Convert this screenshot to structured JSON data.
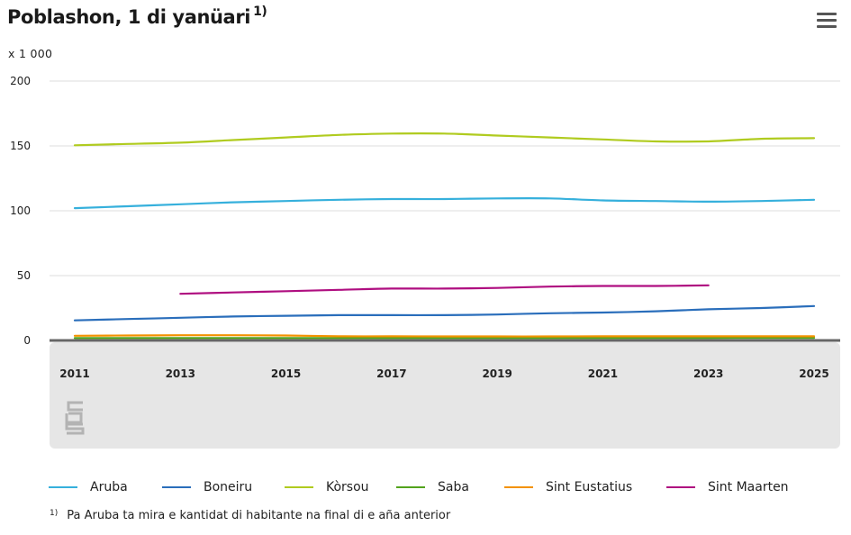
{
  "header": {
    "title": "Poblashon, 1 di yanüari",
    "title_note": "1)",
    "unit": "x 1 000",
    "menu_icon": "hamburger-menu-icon"
  },
  "chart_data": {
    "type": "line",
    "title": "Poblashon, 1 di yanüari",
    "ylabel": "x 1 000",
    "ylim": [
      0,
      200
    ],
    "yticks": [
      0,
      50,
      100,
      150,
      200
    ],
    "xticks": [
      "2011",
      "2013",
      "2015",
      "2017",
      "2019",
      "2021",
      "2023",
      "2025"
    ],
    "x": [
      2011,
      2012,
      2013,
      2014,
      2015,
      2016,
      2017,
      2018,
      2019,
      2020,
      2021,
      2022,
      2023,
      2024,
      2025
    ],
    "grid": true,
    "legend_position": "bottom",
    "series": [
      {
        "name": "Aruba",
        "color": "#36b0dc",
        "values": [
          102,
          103.5,
          105,
          106.5,
          107.5,
          108.5,
          109,
          109,
          109.5,
          109.5,
          108,
          107.5,
          107,
          107.5,
          108.5
        ]
      },
      {
        "name": "Boneiru",
        "color": "#2a6ebb",
        "values": [
          15.5,
          16.5,
          17.5,
          18.5,
          19,
          19.5,
          19.5,
          19.5,
          20,
          21,
          21.5,
          22.5,
          24,
          25,
          26.5
        ]
      },
      {
        "name": "Kòrsou",
        "color": "#b0cb1f",
        "values": [
          150.5,
          151.5,
          152.5,
          154.5,
          156.5,
          158.5,
          159.5,
          159.5,
          158,
          156.5,
          155,
          153.5,
          153.5,
          155.5,
          156
        ]
      },
      {
        "name": "Saba",
        "color": "#53a31d",
        "values": [
          1.9,
          1.9,
          1.9,
          1.9,
          1.9,
          1.9,
          1.9,
          1.9,
          1.9,
          1.9,
          1.9,
          1.9,
          1.9,
          2,
          2
        ]
      },
      {
        "name": "Sint Eustatius",
        "color": "#f39200",
        "values": [
          3.6,
          3.8,
          4,
          4,
          3.8,
          3.2,
          3.2,
          3.1,
          3.1,
          3.1,
          3.2,
          3.2,
          3.2,
          3.2,
          3.2
        ]
      },
      {
        "name": "Sint Maarten",
        "color": "#af0e80",
        "values": [
          null,
          null,
          36,
          37,
          38,
          39,
          40,
          40,
          40.5,
          41.5,
          42,
          42,
          42.5,
          null,
          null
        ]
      }
    ]
  },
  "legend": [
    {
      "name": "Aruba",
      "color": "#36b0dc"
    },
    {
      "name": "Boneiru",
      "color": "#2a6ebb"
    },
    {
      "name": "Kòrsou",
      "color": "#b0cb1f"
    },
    {
      "name": "Saba",
      "color": "#53a31d"
    },
    {
      "name": "Sint Eustatius",
      "color": "#f39200"
    },
    {
      "name": "Sint Maarten",
      "color": "#af0e80"
    }
  ],
  "footnote": {
    "marker": "1)",
    "text": "Pa Aruba ta mira e kantidat di habitante na final di e aña anterior"
  },
  "logo_icon": "cbs-logo-icon"
}
